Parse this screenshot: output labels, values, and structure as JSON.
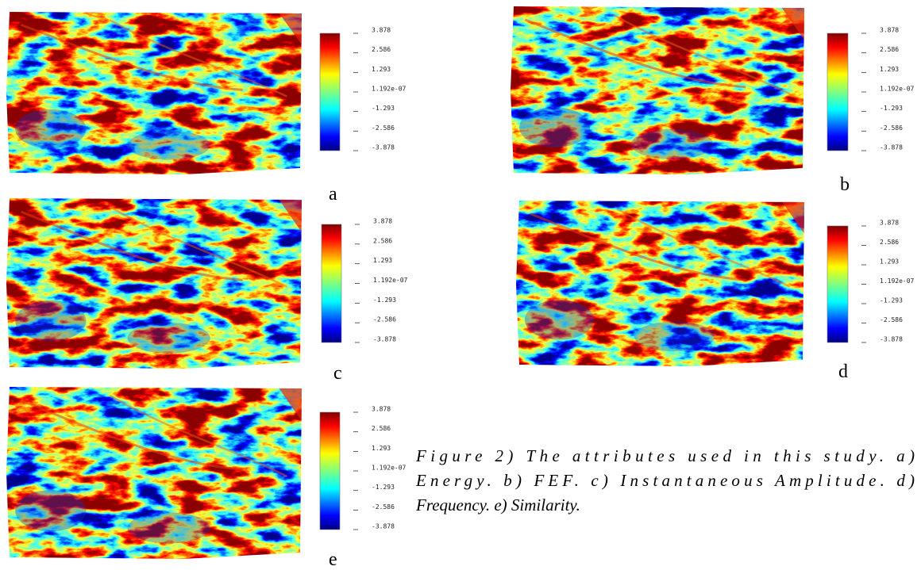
{
  "figure": {
    "panels": [
      {
        "label": "a",
        "colorbar_ticks": [
          "3.878",
          "2.586",
          "1.293",
          "1.192e-07",
          "-1.293",
          "-2.586",
          "-3.878"
        ]
      },
      {
        "label": "b",
        "colorbar_ticks": [
          "3.878",
          "2.586",
          "1.293",
          "1.192e-07",
          "-1.293",
          "-2.586",
          "-3.878"
        ]
      },
      {
        "label": "c",
        "colorbar_ticks": [
          "3.878",
          "2.586",
          "1.293",
          "1.192e-07",
          "-1.293",
          "-2.586",
          "-3.878"
        ]
      },
      {
        "label": "d",
        "colorbar_ticks": [
          "3.878",
          "2.586",
          "1.293",
          "1.192e-07",
          "-1.293",
          "-2.586",
          "-3.878"
        ]
      },
      {
        "label": "e",
        "colorbar_ticks": [
          "3.878",
          "2.586",
          "1.293",
          "1.192e-07",
          "-1.293",
          "-2.586",
          "-3.878"
        ]
      }
    ],
    "caption_lines": [
      "Figure 2) The attributes used in this study. a)",
      "Energy. b) FEF. c) Instantaneous Amplitude. d)",
      "Frequency. e) Similarity."
    ]
  }
}
